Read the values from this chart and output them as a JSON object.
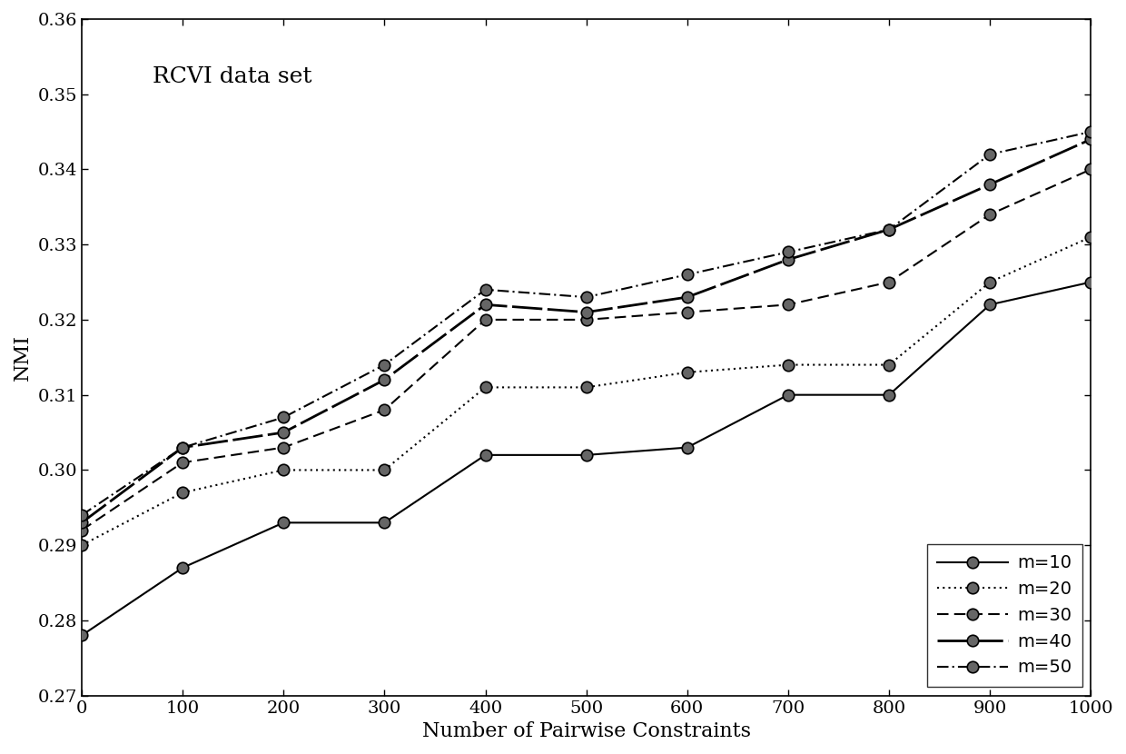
{
  "title": "RCVI data set",
  "xlabel": "Number of Pairwise Constraints",
  "ylabel": "NMI",
  "xlim": [
    0,
    1000
  ],
  "ylim": [
    0.27,
    0.36
  ],
  "xticks": [
    0,
    100,
    200,
    300,
    400,
    500,
    600,
    700,
    800,
    900,
    1000
  ],
  "yticks": [
    0.27,
    0.28,
    0.29,
    0.3,
    0.31,
    0.32,
    0.33,
    0.34,
    0.35,
    0.36
  ],
  "x": [
    0,
    100,
    200,
    300,
    400,
    500,
    600,
    700,
    800,
    900,
    1000
  ],
  "series": [
    {
      "label": "m=10",
      "y": [
        0.278,
        0.287,
        0.293,
        0.293,
        0.302,
        0.302,
        0.303,
        0.31,
        0.31,
        0.322,
        0.325
      ],
      "linestyle": "solid",
      "linewidth": 1.5,
      "dashes": []
    },
    {
      "label": "m=20",
      "y": [
        0.29,
        0.297,
        0.3,
        0.3,
        0.311,
        0.311,
        0.313,
        0.314,
        0.314,
        0.325,
        0.331
      ],
      "linestyle": "dotted",
      "linewidth": 1.5,
      "dashes": [
        1,
        2
      ]
    },
    {
      "label": "m=30",
      "y": [
        0.292,
        0.301,
        0.303,
        0.308,
        0.32,
        0.32,
        0.321,
        0.322,
        0.325,
        0.334,
        0.34
      ],
      "linestyle": "dashed",
      "linewidth": 1.5,
      "dashes": [
        6,
        3
      ]
    },
    {
      "label": "m=40",
      "y": [
        0.293,
        0.303,
        0.305,
        0.312,
        0.322,
        0.321,
        0.323,
        0.328,
        0.332,
        0.338,
        0.344
      ],
      "linestyle": "dashed",
      "linewidth": 2.0,
      "dashes": [
        12,
        2
      ]
    },
    {
      "label": "m=50",
      "y": [
        0.294,
        0.303,
        0.307,
        0.314,
        0.324,
        0.323,
        0.326,
        0.329,
        0.332,
        0.342,
        0.345
      ],
      "linestyle": "dashdot",
      "linewidth": 1.5,
      "dashes": [
        6,
        2,
        1,
        2
      ]
    }
  ],
  "legend_loc": "lower right",
  "background_color": "#ffffff",
  "line_color": "#000000",
  "marker_facecolor": "#666666",
  "marker_edgecolor": "#000000",
  "markersize": 9,
  "title_fontsize": 18,
  "label_fontsize": 16,
  "tick_fontsize": 14,
  "legend_fontsize": 14
}
